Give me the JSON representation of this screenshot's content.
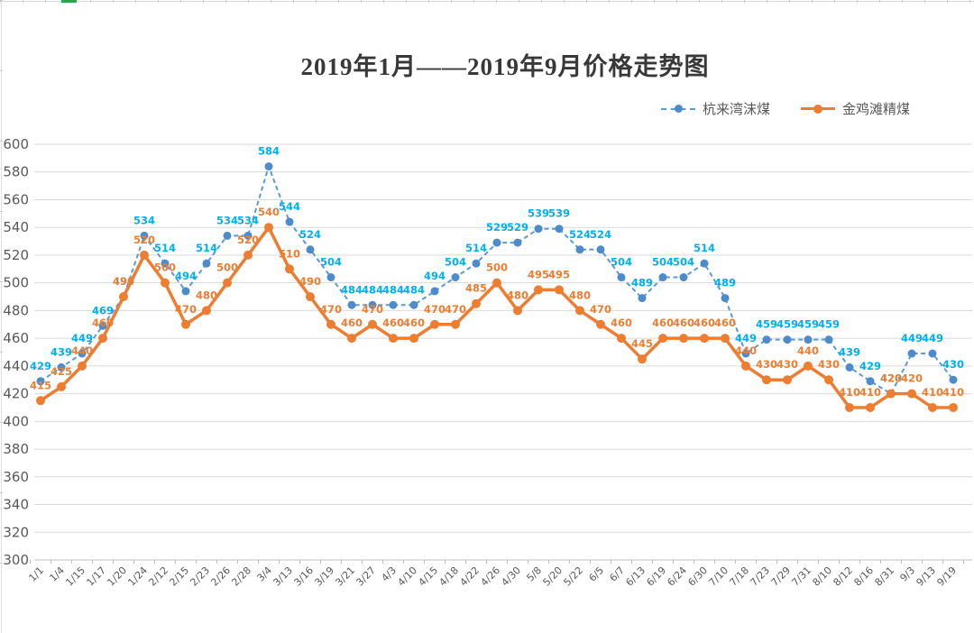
{
  "title": "2019年1月——2019年9月价格走势图",
  "colors": {
    "series1_line": "#5B9BD5",
    "series1_marker": "#4E8BCB",
    "series1_label": "#00B0F0",
    "series2": "#ED7D31",
    "grid": "#D9D9D9",
    "axis": "#BFBFBF",
    "axis_text": "#595959"
  },
  "chart_data": {
    "type": "line",
    "title": "2019年1月——2019年9月价格走势图",
    "categories": [
      "1/1",
      "1/4",
      "1/15",
      "1/17",
      "1/20",
      "1/24",
      "2/12",
      "2/15",
      "2/23",
      "2/26",
      "2/28",
      "3/4",
      "3/13",
      "3/16",
      "3/19",
      "3/21",
      "3/27",
      "4/3",
      "4/10",
      "4/15",
      "4/18",
      "4/22",
      "4/26",
      "4/30",
      "5/8",
      "5/20",
      "5/22",
      "6/5",
      "6/7",
      "6/13",
      "6/19",
      "6/24",
      "6/30",
      "7/10",
      "7/18",
      "7/23",
      "7/29",
      "7/31",
      "8/10",
      "8/12",
      "8/16",
      "8/31",
      "9/3",
      "9/13",
      "9/19"
    ],
    "series": [
      {
        "name": "杭来湾沫煤",
        "values": [
          429,
          439,
          449,
          469,
          490,
          534,
          514,
          494,
          514,
          534,
          534,
          584,
          544,
          524,
          504,
          484,
          484,
          484,
          484,
          494,
          504,
          514,
          529,
          529,
          539,
          539,
          524,
          524,
          504,
          489,
          504,
          504,
          514,
          489,
          449,
          459,
          459,
          459,
          459,
          439,
          429,
          420,
          449,
          449,
          430
        ],
        "color": "#5B9BD5",
        "marker_color": "#4E8BCB",
        "label_color": "#00B0F0",
        "line_style": "dashed",
        "line_width": 2,
        "marker_radius": 4.5
      },
      {
        "name": "金鸡滩精煤",
        "values": [
          415,
          425,
          440,
          460,
          490,
          520,
          500,
          470,
          480,
          500,
          520,
          540,
          510,
          490,
          470,
          460,
          470,
          460,
          460,
          470,
          470,
          485,
          500,
          480,
          495,
          495,
          480,
          470,
          460,
          445,
          460,
          460,
          460,
          460,
          440,
          430,
          430,
          440,
          430,
          410,
          410,
          420,
          420,
          410,
          410
        ],
        "color": "#ED7D31",
        "marker_color": "#ED7D31",
        "label_color": "#ED7D31",
        "line_style": "solid",
        "line_width": 3.5,
        "marker_radius": 5
      }
    ],
    "ylim": [
      300,
      600
    ],
    "y_ticks": [
      600,
      580,
      560,
      540,
      520,
      500,
      480,
      460,
      440,
      420,
      400,
      380,
      360,
      340,
      320,
      300
    ],
    "grid": true,
    "data_labels": true,
    "legend_position": "top-right",
    "xlabel": "",
    "ylabel": ""
  }
}
